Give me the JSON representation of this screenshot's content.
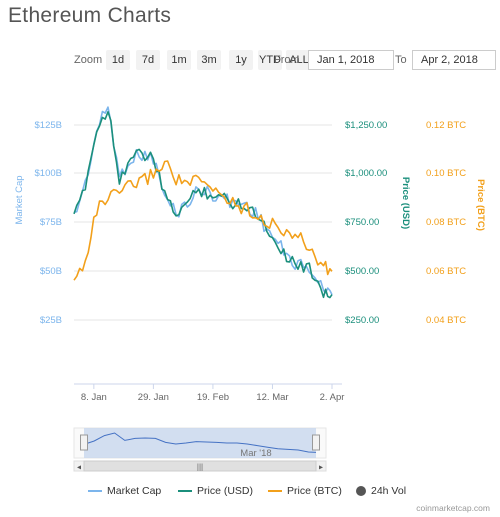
{
  "title": "Ethereum Charts",
  "zoom": {
    "label": "Zoom",
    "buttons": [
      "1d",
      "7d",
      "1m",
      "3m",
      "1y",
      "YTD",
      "ALL"
    ],
    "from_label": "From",
    "from_value": "Jan 1, 2018",
    "to_label": "To",
    "to_value": "Apr 2, 2018"
  },
  "colors": {
    "market_cap": "#7cb5ec",
    "price_usd": "#1b8f7c",
    "price_btc": "#f2a01b",
    "vol": "#555555"
  },
  "chart_data": {
    "type": "line",
    "x_ticks": [
      "8. Jan",
      "29. Jan",
      "19. Feb",
      "12. Mar",
      "2. Apr"
    ],
    "axes": {
      "market_cap": {
        "label": "Market Cap",
        "ticks": [
          "$25B",
          "$50B",
          "$75B",
          "$100B",
          "$125B"
        ],
        "values": [
          25,
          50,
          75,
          100,
          125
        ],
        "unit": "B USD"
      },
      "price_usd": {
        "label": "Price (USD)",
        "ticks": [
          "$250.00",
          "$500.00",
          "$750.00",
          "$1,000.00",
          "$1,250.00"
        ],
        "values": [
          250,
          500,
          750,
          1000,
          1250
        ]
      },
      "price_btc": {
        "label": "Price (BTC)",
        "ticks": [
          "0.04 BTC",
          "0.06 BTC",
          "0.08 BTC",
          "0.10 BTC",
          "0.12 BTC"
        ],
        "values": [
          0.04,
          0.06,
          0.08,
          0.1,
          0.12
        ]
      }
    },
    "series": [
      {
        "name": "Market Cap",
        "axis": "market_cap",
        "x": [
          "Jan 1",
          "Jan 5",
          "Jan 9",
          "Jan 13",
          "Jan 17",
          "Jan 21",
          "Jan 25",
          "Jan 29",
          "Feb 2",
          "Feb 6",
          "Feb 10",
          "Feb 14",
          "Feb 18",
          "Feb 22",
          "Feb 26",
          "Mar 2",
          "Mar 6",
          "Mar 10",
          "Mar 14",
          "Mar 18",
          "Mar 22",
          "Mar 26",
          "Mar 30",
          "Apr 2"
        ],
        "values": [
          78,
          95,
          122,
          135,
          98,
          108,
          110,
          108,
          88,
          80,
          85,
          92,
          90,
          88,
          85,
          85,
          80,
          72,
          64,
          56,
          53,
          50,
          40,
          38
        ]
      },
      {
        "name": "Price (USD)",
        "axis": "price_usd",
        "x": [
          "Jan 1",
          "Jan 5",
          "Jan 9",
          "Jan 13",
          "Jan 17",
          "Jan 21",
          "Jan 25",
          "Jan 29",
          "Feb 2",
          "Feb 6",
          "Feb 10",
          "Feb 14",
          "Feb 18",
          "Feb 22",
          "Feb 26",
          "Mar 2",
          "Mar 6",
          "Mar 10",
          "Mar 14",
          "Mar 18",
          "Mar 22",
          "Mar 26",
          "Mar 30",
          "Apr 2"
        ],
        "values": [
          760,
          950,
          1220,
          1340,
          980,
          1080,
          1100,
          1080,
          880,
          800,
          850,
          920,
          900,
          880,
          850,
          850,
          800,
          720,
          640,
          560,
          530,
          500,
          400,
          380
        ]
      },
      {
        "name": "Price (BTC)",
        "axis": "price_btc",
        "x": [
          "Jan 1",
          "Jan 5",
          "Jan 9",
          "Jan 13",
          "Jan 17",
          "Jan 21",
          "Jan 25",
          "Jan 29",
          "Feb 2",
          "Feb 6",
          "Feb 10",
          "Feb 14",
          "Feb 18",
          "Feb 22",
          "Feb 26",
          "Mar 2",
          "Mar 6",
          "Mar 10",
          "Mar 14",
          "Mar 18",
          "Mar 22",
          "Mar 26",
          "Mar 30",
          "Apr 2"
        ],
        "values": [
          0.055,
          0.065,
          0.085,
          0.09,
          0.092,
          0.095,
          0.097,
          0.1,
          0.105,
          0.098,
          0.096,
          0.097,
          0.094,
          0.092,
          0.088,
          0.086,
          0.084,
          0.08,
          0.078,
          0.076,
          0.073,
          0.068,
          0.062,
          0.06
        ]
      }
    ],
    "navigator": {
      "label": "Mar '18"
    }
  },
  "legend": [
    "Market Cap",
    "Price (USD)",
    "Price (BTC)",
    "24h Vol"
  ],
  "footer": "coinmarketcap.com"
}
